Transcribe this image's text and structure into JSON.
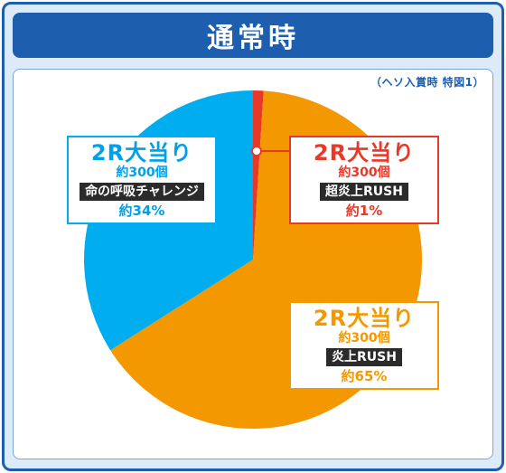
{
  "title": "通常時",
  "note": "（ヘソ入賞時 特図1）",
  "colors": {
    "frame": "#1d5fae",
    "blue_slice": "#00aeef",
    "orange_slice": "#f39800",
    "red_slice": "#e83828",
    "blue_text": "#00a0e9",
    "orange_text": "#f39800",
    "red_text": "#e83828"
  },
  "chart_data": {
    "type": "pie",
    "slices": [
      {
        "round": "2R大当り",
        "count": "約300個",
        "mode": "超炎上RUSH",
        "percent_label": "約1%",
        "value": 1,
        "color": "#e83828"
      },
      {
        "round": "2R大当り",
        "count": "約300個",
        "mode": "炎上RUSH",
        "percent_label": "約65%",
        "value": 65,
        "color": "#f39800"
      },
      {
        "round": "2R大当り",
        "count": "約300個",
        "mode": "命の呼吸チャレンジ",
        "percent_label": "約34%",
        "value": 34,
        "color": "#00aeef"
      }
    ]
  }
}
